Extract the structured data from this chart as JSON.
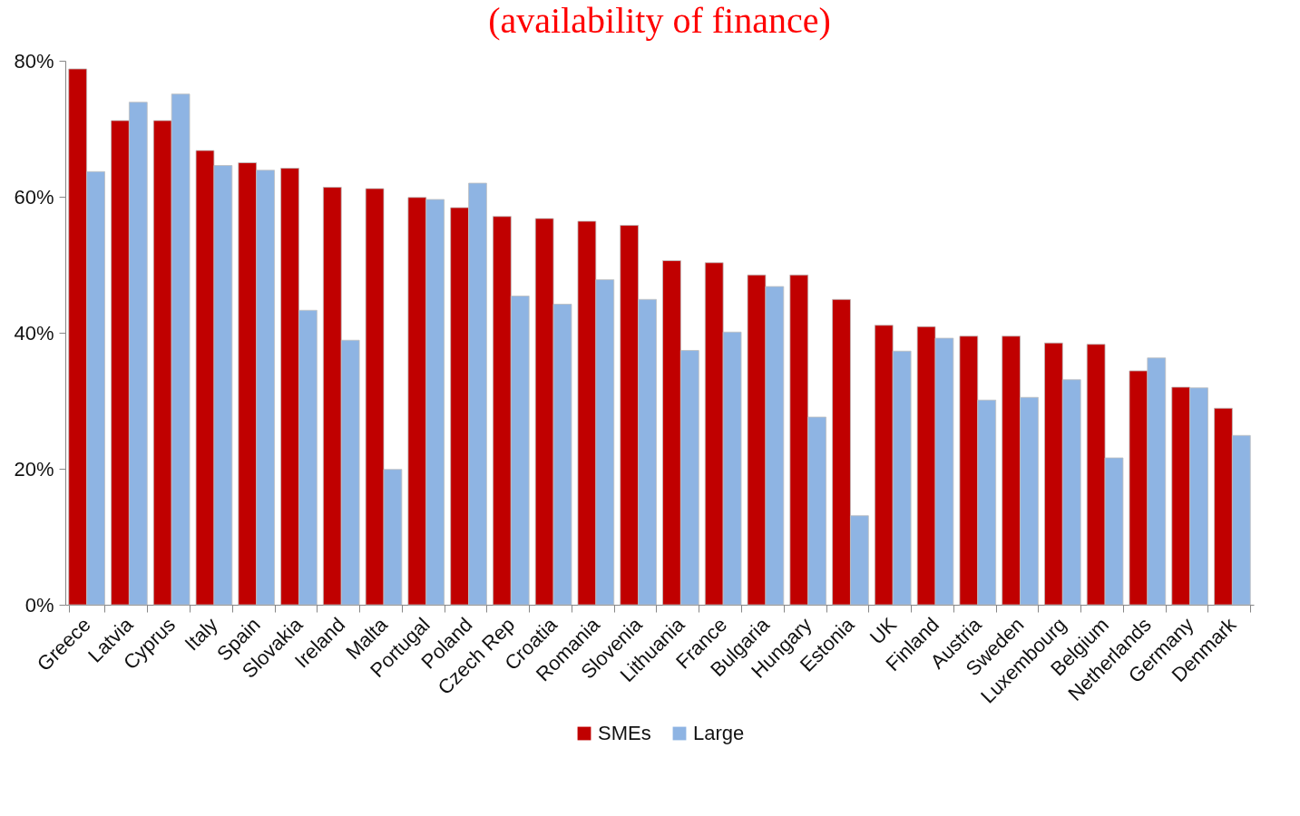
{
  "chart_data": {
    "type": "bar",
    "title": "(availability of finance)",
    "categories": [
      "Greece",
      "Latvia",
      "Cyprus",
      "Italy",
      "Spain",
      "Slovakia",
      "Ireland",
      "Malta",
      "Portugal",
      "Poland",
      "Czech Rep",
      "Croatia",
      "Romania",
      "Slovenia",
      "Lithuania",
      "France",
      "Bulgaria",
      "Hungary",
      "Estonia",
      "UK",
      "Finland",
      "Austria",
      "Sweden",
      "Luxembourg",
      "Belgium",
      "Netherlands",
      "Germany",
      "Denmark"
    ],
    "series": [
      {
        "name": "SMEs",
        "color": "#c00000",
        "values": [
          78.8,
          71.2,
          71.2,
          66.8,
          65.0,
          64.2,
          61.4,
          61.2,
          59.9,
          58.4,
          57.1,
          56.8,
          56.4,
          55.8,
          50.6,
          50.3,
          48.5,
          48.5,
          44.9,
          41.1,
          40.9,
          39.5,
          39.5,
          38.5,
          38.3,
          34.4,
          32.0,
          28.9
        ]
      },
      {
        "name": "Large",
        "color": "#8eb4e3",
        "values": [
          63.7,
          73.9,
          75.1,
          64.6,
          63.9,
          43.3,
          38.9,
          19.9,
          59.6,
          62.0,
          45.4,
          44.2,
          47.8,
          44.9,
          37.4,
          40.1,
          46.8,
          27.6,
          13.1,
          37.3,
          39.2,
          30.1,
          30.5,
          33.1,
          21.6,
          36.3,
          31.9,
          24.9
        ]
      }
    ],
    "ylim": [
      0,
      80
    ],
    "yticks": [
      {
        "value": 0,
        "label": "0%"
      },
      {
        "value": 20,
        "label": "20%"
      },
      {
        "value": 40,
        "label": "40%"
      },
      {
        "value": 60,
        "label": "60%"
      },
      {
        "value": 80,
        "label": "80%"
      }
    ],
    "legend": "bottom"
  }
}
